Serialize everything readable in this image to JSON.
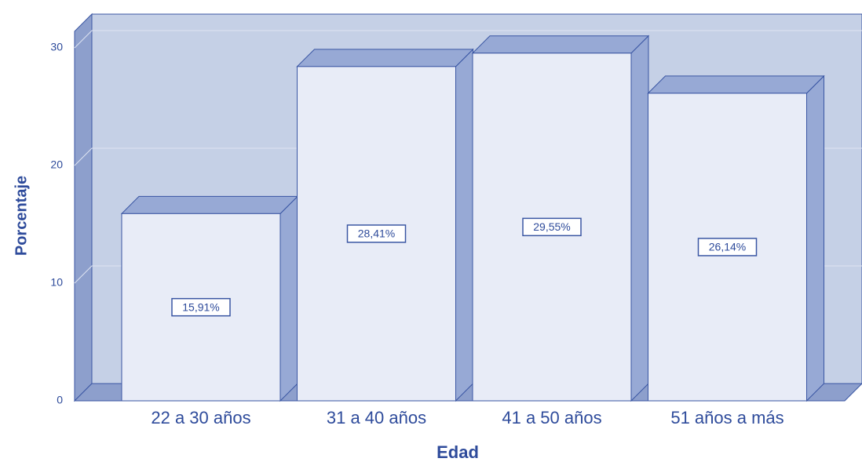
{
  "chart_data": {
    "type": "bar3d",
    "categories": [
      "22 a 30 años",
      "31 a 40 años",
      "41 a 50 años",
      "51 años a más"
    ],
    "values": [
      15.91,
      28.41,
      29.55,
      26.14
    ],
    "value_labels": [
      "15,91%",
      "28,41%",
      "29,55%",
      "26,14%"
    ],
    "xlabel": "Edad",
    "ylabel": "Porcentaje",
    "ylim": [
      0,
      31.4
    ],
    "yticks": [
      0,
      10,
      20,
      30
    ],
    "grid": true,
    "color": "#e8ecf7"
  }
}
